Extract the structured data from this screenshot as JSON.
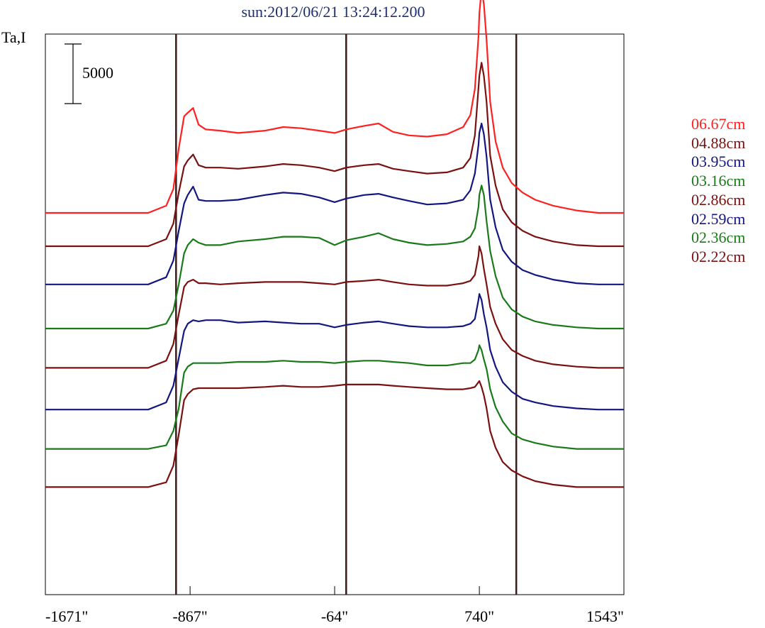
{
  "chart_data": {
    "type": "line",
    "title": "sun:2012/06/21 13:24:12.200",
    "ylabel": "Ta,I",
    "scale_bar_label": "5000",
    "xlim": [
      -1671,
      1543
    ],
    "x_ticks": [
      {
        "value": -1671,
        "label": "-1671\""
      },
      {
        "value": -867,
        "label": "-867\""
      },
      {
        "value": -64,
        "label": "-64\""
      },
      {
        "value": 740,
        "label": "740\""
      },
      {
        "value": 1543,
        "label": "1543\""
      }
    ],
    "vertical_markers": [
      -945,
      0,
      945
    ],
    "profile_x": [
      -1671,
      -1100,
      -1000,
      -960,
      -930,
      -900,
      -880,
      -850,
      -820,
      -780,
      -700,
      -600,
      -450,
      -350,
      -250,
      -150,
      -64,
      0,
      100,
      180,
      260,
      350,
      450,
      560,
      650,
      690,
      715,
      735,
      740,
      752,
      765,
      780,
      800,
      830,
      870,
      920,
      980,
      1050,
      1150,
      1280,
      1400,
      1543
    ],
    "series": [
      {
        "name": "06.67cm",
        "color": "#ff2020",
        "baseline": 0,
        "values": [
          0,
          0,
          600,
          2000,
          5400,
          8100,
          8400,
          8800,
          7400,
          7000,
          6900,
          6700,
          6900,
          7200,
          7100,
          6900,
          6700,
          7000,
          7300,
          7500,
          6800,
          6500,
          6400,
          6600,
          7200,
          8200,
          10400,
          14800,
          16700,
          18800,
          17500,
          14500,
          9300,
          6000,
          3800,
          2500,
          1700,
          1100,
          600,
          200,
          0,
          0
        ]
      },
      {
        "name": "04.88cm",
        "color": "#7a1010",
        "baseline": -2800,
        "values": [
          0,
          0,
          600,
          1900,
          4500,
          6700,
          7200,
          7700,
          6800,
          6600,
          6600,
          6500,
          6700,
          6900,
          6800,
          6600,
          6300,
          6600,
          6800,
          6900,
          6500,
          6300,
          6100,
          6200,
          6600,
          7400,
          9300,
          13300,
          14300,
          15400,
          14300,
          12100,
          7600,
          5100,
          3100,
          2000,
          1300,
          800,
          400,
          100,
          0,
          0
        ]
      },
      {
        "name": "03.95cm",
        "color": "#141680",
        "baseline": -6000,
        "values": [
          0,
          0,
          600,
          2000,
          4500,
          6800,
          7500,
          8200,
          7100,
          7000,
          7000,
          7100,
          7500,
          7700,
          7600,
          7300,
          6900,
          7200,
          7500,
          7600,
          7300,
          7000,
          6700,
          6800,
          7100,
          7900,
          9300,
          11700,
          12700,
          13500,
          12600,
          10700,
          7100,
          4800,
          2900,
          1900,
          1200,
          800,
          400,
          100,
          0,
          0
        ]
      },
      {
        "name": "03.16cm",
        "color": "#1a7a1a",
        "baseline": -9700,
        "values": [
          0,
          0,
          400,
          1500,
          3700,
          6300,
          7000,
          7500,
          7200,
          7000,
          7000,
          7300,
          7500,
          7700,
          7700,
          7600,
          7000,
          7400,
          7700,
          8000,
          7500,
          7200,
          7000,
          7100,
          7300,
          7700,
          8400,
          10200,
          11200,
          12000,
          11200,
          9000,
          6500,
          4400,
          2600,
          1600,
          1000,
          600,
          300,
          100,
          0,
          0
        ]
      },
      {
        "name": "02.86cm",
        "color": "#7a1010",
        "baseline": -13000,
        "values": [
          0,
          0,
          600,
          2000,
          4500,
          6800,
          7200,
          7400,
          7100,
          7100,
          7000,
          7100,
          7200,
          7200,
          7200,
          7100,
          7000,
          7200,
          7300,
          7400,
          7200,
          7000,
          6900,
          6900,
          7100,
          7300,
          7800,
          9400,
          10200,
          9600,
          8300,
          7000,
          5100,
          3700,
          2400,
          1500,
          1000,
          600,
          300,
          100,
          0,
          0
        ]
      },
      {
        "name": "02.59cm",
        "color": "#141680",
        "baseline": -16500,
        "values": [
          0,
          0,
          600,
          2000,
          4300,
          6600,
          7200,
          7500,
          7400,
          7500,
          7500,
          7300,
          7400,
          7300,
          7200,
          7200,
          6900,
          7100,
          7300,
          7400,
          7200,
          7000,
          6900,
          6900,
          7000,
          7200,
          7600,
          9200,
          9700,
          9200,
          8000,
          6900,
          5000,
          3600,
          2300,
          1500,
          900,
          600,
          300,
          100,
          0,
          0
        ]
      },
      {
        "name": "02.36cm",
        "color": "#1a7a1a",
        "baseline": -19800,
        "values": [
          0,
          0,
          300,
          1500,
          3400,
          6400,
          6900,
          7200,
          7200,
          7200,
          7200,
          7300,
          7300,
          7400,
          7300,
          7300,
          7200,
          7300,
          7400,
          7400,
          7300,
          7200,
          7000,
          7000,
          7200,
          7200,
          7500,
          8300,
          8700,
          8300,
          7500,
          6700,
          5000,
          3500,
          2300,
          1300,
          800,
          500,
          200,
          0,
          0,
          0
        ]
      },
      {
        "name": "02.22cm",
        "color": "#7a1010",
        "baseline": -23000,
        "values": [
          0,
          0,
          400,
          1800,
          4400,
          7300,
          7800,
          8200,
          8300,
          8300,
          8300,
          8300,
          8400,
          8500,
          8400,
          8400,
          8500,
          8600,
          8600,
          8600,
          8500,
          8400,
          8300,
          8200,
          8200,
          8300,
          8400,
          8800,
          8900,
          8400,
          7700,
          6600,
          4700,
          3300,
          2100,
          1400,
          900,
          500,
          200,
          0,
          0,
          0
        ]
      }
    ]
  }
}
